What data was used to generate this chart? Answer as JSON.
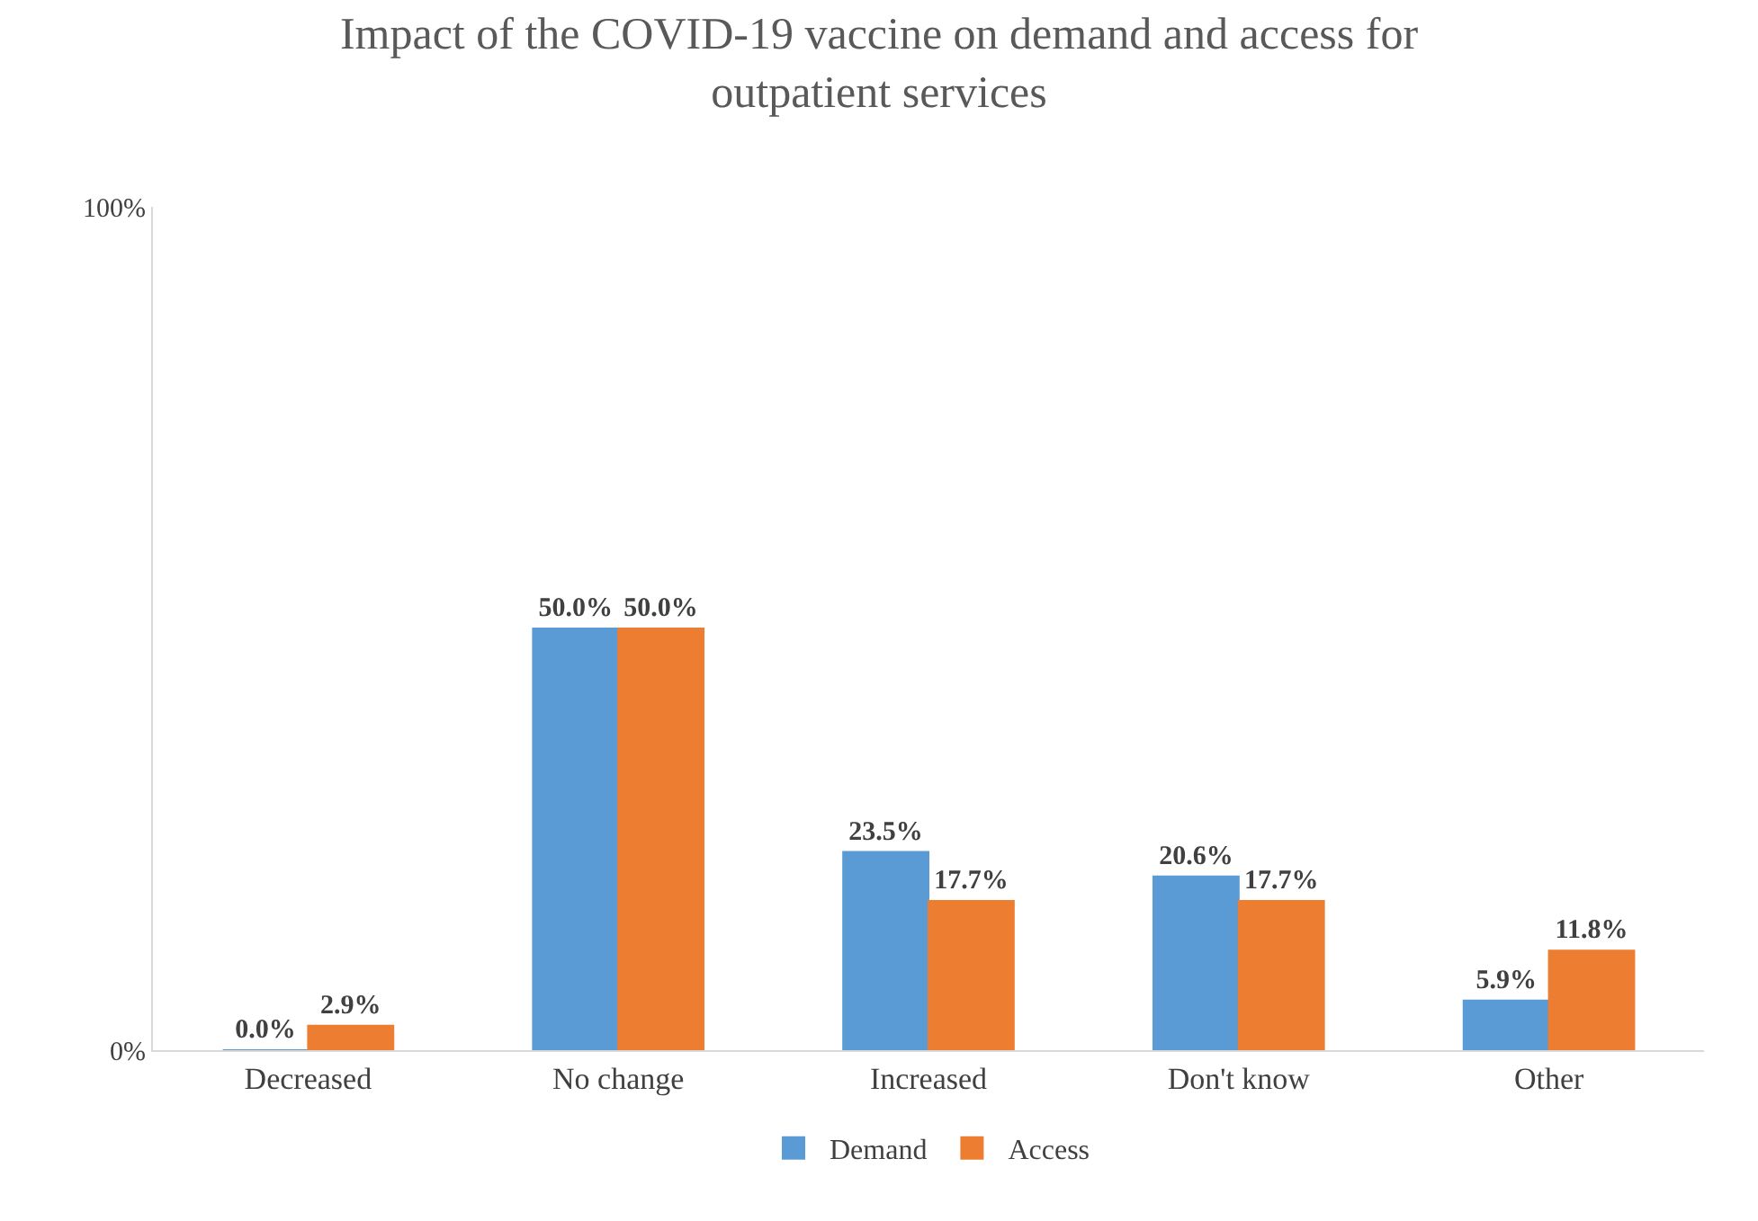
{
  "chart_data": {
    "type": "bar",
    "title": "Impact of the COVID-19 vaccine on demand and access for outpatient services",
    "categories": [
      "Decreased",
      "No change",
      "Increased",
      "Don't know",
      "Other"
    ],
    "series": [
      {
        "name": "Demand",
        "color": "#5b9bd5",
        "values": [
          0.0,
          50.0,
          23.5,
          20.6,
          5.9
        ],
        "value_labels": [
          "0.0%",
          "50.0%",
          "23.5%",
          "20.6%",
          "5.9%"
        ]
      },
      {
        "name": "Access",
        "color": "#ed7d31",
        "values": [
          2.9,
          50.0,
          17.7,
          17.7,
          11.8
        ],
        "value_labels": [
          "2.9%",
          "50.0%",
          "17.7%",
          "17.7%",
          "11.8%"
        ]
      }
    ],
    "ylim": [
      0,
      100
    ],
    "yticks": [
      {
        "value": 0,
        "label": "0%"
      },
      {
        "value": 100,
        "label": "100%"
      }
    ],
    "legend": "bottom"
  }
}
